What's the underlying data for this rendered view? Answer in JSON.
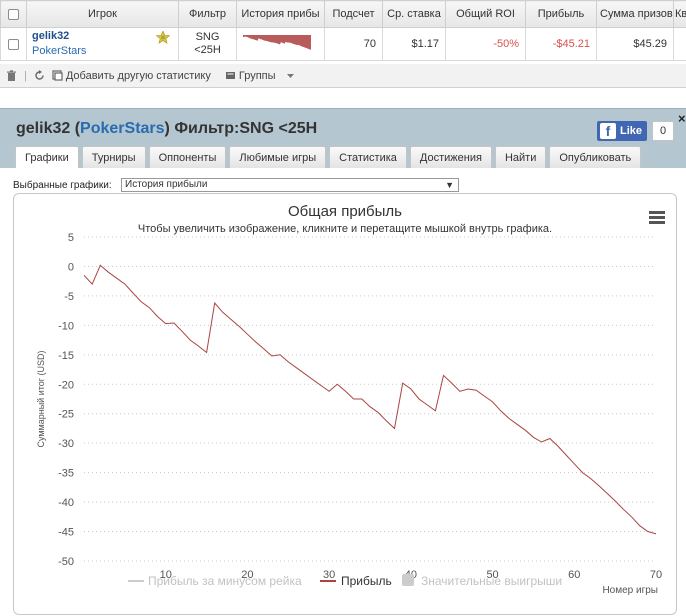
{
  "table": {
    "headers": [
      "Игрок",
      "Фильтр",
      "История прибы",
      "Подсчет",
      "Ср. ставка",
      "Общий ROI",
      "Прибыль",
      "Сумма призов",
      "Ква"
    ],
    "row": {
      "player_name": "gelik32",
      "player_site": "PokerStars",
      "filter": "SNG\n<25H",
      "filter_line1": "SNG",
      "filter_line2": "<25H",
      "count": "70",
      "avg_stake": "$1.17",
      "roi": "-50%",
      "profit": "-$45.21",
      "prize_sum": "$45.29"
    }
  },
  "toolbar": {
    "add_stat": "Добавить другую статистику",
    "groups": "Группы"
  },
  "panel": {
    "player": "gelik32",
    "site": "PokerStars",
    "filter_text": "Фильтр:SNG <25H",
    "like_label": "Like",
    "like_count": "0",
    "close": "×",
    "tabs": [
      "Графики",
      "Турниры",
      "Оппоненты",
      "Любимые игры",
      "Статистика",
      "Достижения",
      "Найти",
      "Опубликовать"
    ],
    "select_label": "Выбранные графики:",
    "select_value": "История прибыли"
  },
  "colors": {
    "series_line": "#a94442",
    "panel_bg": "#b4c7d1",
    "link": "#2a6bb0",
    "negative": "#d9534f"
  },
  "chart_data": {
    "type": "line",
    "title": "Общая прибыль",
    "subtitle": "Чтобы увеличить изображение, кликните и перетащите мышкой внутрь графика.",
    "xlabel": "Номер игры",
    "ylabel": "Суммарный итог (USD)",
    "xlim": [
      0,
      70
    ],
    "ylim": [
      -50,
      5
    ],
    "xticks": [
      10,
      20,
      30,
      40,
      50,
      60,
      70
    ],
    "yticks": [
      5,
      0,
      -5,
      -10,
      -15,
      -20,
      -25,
      -30,
      -35,
      -40,
      -45,
      -50
    ],
    "grid": true,
    "legend_position": "bottom",
    "series": [
      {
        "name": "Прибыль за минусом рейка",
        "values": []
      },
      {
        "name": "Прибыль",
        "x": [
          0,
          1,
          2,
          3,
          4,
          5,
          6,
          7,
          8,
          9,
          10,
          11,
          12,
          13,
          14,
          15,
          16,
          17,
          18,
          19,
          20,
          21,
          22,
          23,
          24,
          25,
          26,
          27,
          28,
          29,
          30,
          31,
          32,
          33,
          34,
          35,
          36,
          37,
          38,
          39,
          40,
          41,
          42,
          43,
          44,
          45,
          46,
          47,
          48,
          49,
          50,
          51,
          52,
          53,
          54,
          55,
          56,
          57,
          58,
          59,
          60,
          61,
          62,
          63,
          64,
          65,
          66,
          67,
          68,
          69,
          70
        ],
        "values": [
          -1.5,
          -3,
          0.2,
          -1,
          -2,
          -3,
          -4.5,
          -6,
          -7,
          -8.5,
          -9.7,
          -9.6,
          -11,
          -12.5,
          -13.5,
          -14.6,
          -6.2,
          -7.8,
          -9,
          -10.2,
          -11.5,
          -12.8,
          -14,
          -15.2,
          -15,
          -16.2,
          -17.2,
          -18.2,
          -19.2,
          -20.2,
          -21.2,
          -20,
          -21.2,
          -22.5,
          -22.5,
          -23.8,
          -24.8,
          -26.2,
          -27.5,
          -19.8,
          -20.8,
          -22.5,
          -23.5,
          -24.5,
          -18.5,
          -19.8,
          -21.2,
          -20.8,
          -21,
          -22,
          -23,
          -24.5,
          -25.8,
          -26.8,
          -27.8,
          -29,
          -29.8,
          -29.2,
          -30.5,
          -32,
          -33.5,
          -35,
          -36,
          -37.2,
          -38.5,
          -39.8,
          -41.2,
          -42.5,
          -44,
          -45,
          -45.4
        ]
      },
      {
        "name": "Значительные выигрыши",
        "values": []
      }
    ]
  }
}
